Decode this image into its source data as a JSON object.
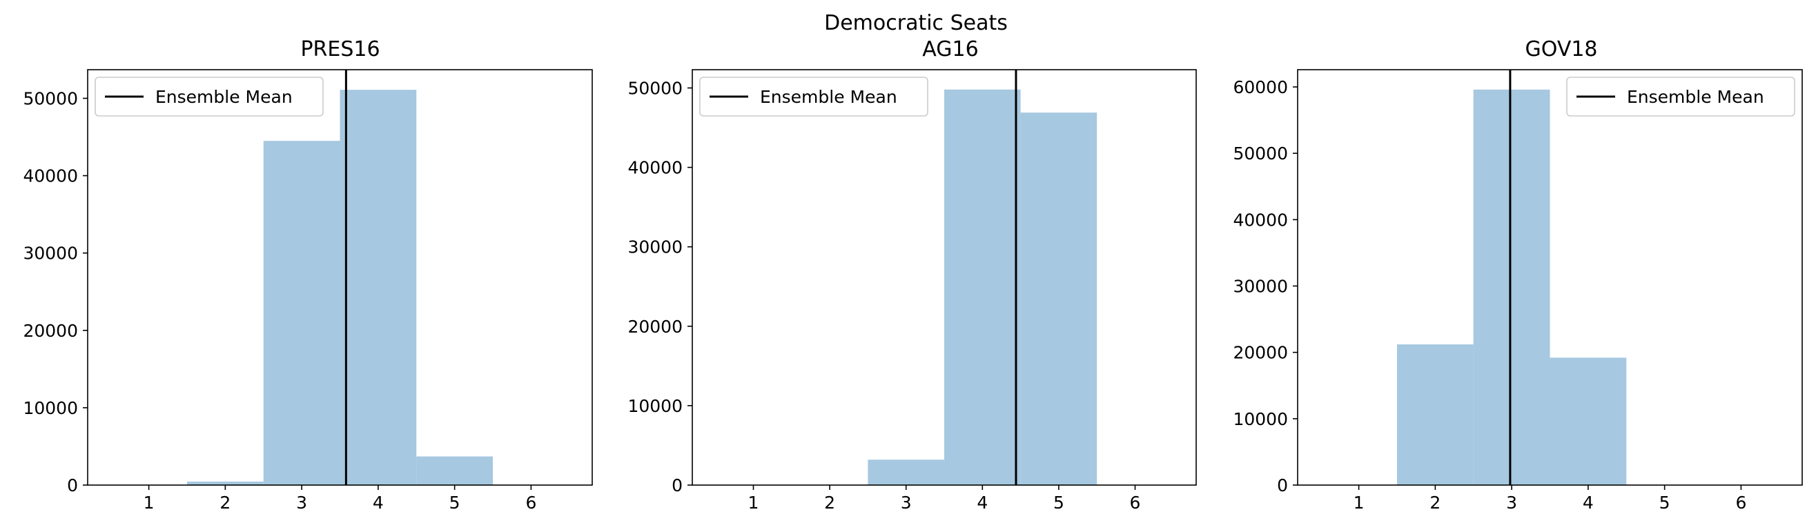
{
  "figure": {
    "suptitle": "Democratic Seats"
  },
  "colors": {
    "bar": "#a6c8e0",
    "mean_line": "#000000",
    "axes": "#000000"
  },
  "chart_data": [
    {
      "type": "bar",
      "title": "PRES16",
      "xlabel": "",
      "ylabel": "",
      "categories": [
        1,
        2,
        3,
        4,
        5,
        6
      ],
      "values": [
        0,
        450,
        44500,
        51100,
        3700,
        0
      ],
      "xlim": [
        0.2,
        6.8
      ],
      "ylim": [
        0,
        53700
      ],
      "xticks": [
        1,
        2,
        3,
        4,
        5,
        6
      ],
      "yticks": [
        0,
        10000,
        20000,
        30000,
        40000,
        50000
      ],
      "mean": 3.58,
      "legend": {
        "label": "Ensemble Mean",
        "loc": "upper left"
      },
      "grid": false
    },
    {
      "type": "bar",
      "title": "AG16",
      "xlabel": "",
      "ylabel": "",
      "categories": [
        1,
        2,
        3,
        4,
        5,
        6
      ],
      "values": [
        0,
        0,
        3200,
        49800,
        46900,
        0
      ],
      "xlim": [
        0.2,
        6.8
      ],
      "ylim": [
        0,
        52300
      ],
      "xticks": [
        1,
        2,
        3,
        4,
        5,
        6
      ],
      "yticks": [
        0,
        10000,
        20000,
        30000,
        40000,
        50000
      ],
      "mean": 4.44,
      "legend": {
        "label": "Ensemble Mean",
        "loc": "upper left"
      },
      "grid": false
    },
    {
      "type": "bar",
      "title": "GOV18",
      "xlabel": "",
      "ylabel": "",
      "categories": [
        1,
        2,
        3,
        4,
        5,
        6
      ],
      "values": [
        0,
        21200,
        59600,
        19200,
        0,
        0
      ],
      "xlim": [
        0.2,
        6.8
      ],
      "ylim": [
        0,
        62600
      ],
      "xticks": [
        1,
        2,
        3,
        4,
        5,
        6
      ],
      "yticks": [
        0,
        10000,
        20000,
        30000,
        40000,
        50000,
        60000
      ],
      "mean": 2.98,
      "legend": {
        "label": "Ensemble Mean",
        "loc": "upper right"
      },
      "grid": false
    }
  ]
}
